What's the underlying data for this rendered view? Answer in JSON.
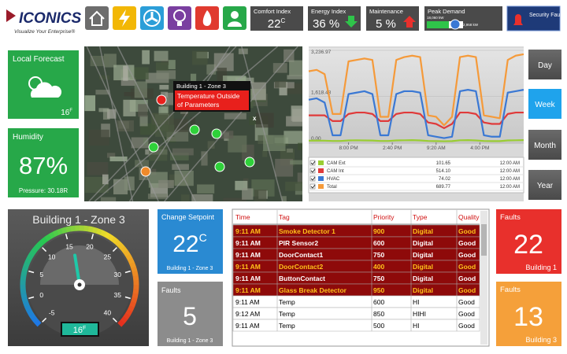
{
  "logo": {
    "brand": "ICONICS",
    "tagline": "Visualize Your Enterprise®"
  },
  "kpis": [
    {
      "label": "Comfort Index",
      "value": "22",
      "unit": "C"
    },
    {
      "label": "Energy Index",
      "value": "36 %"
    },
    {
      "label": "Maintenance",
      "value": "5 %"
    }
  ],
  "peak_demand": {
    "label": "Peak Demand",
    "max": "18,060 kW",
    "current": "2,958 kW"
  },
  "security": {
    "label": "Security Faults"
  },
  "forecast": {
    "title": "Local Forecast",
    "temp": "16",
    "unit": "F"
  },
  "humidity": {
    "title": "Humidity",
    "value": "87%",
    "pressure": "Pressure: 30.18R"
  },
  "map": {
    "tooltip_title": "Building 1 - Zone 3",
    "tooltip_text": [
      "Temperature Outside",
      "of Parameters"
    ],
    "close": "x"
  },
  "chart_data": {
    "type": "line",
    "xlim": [
      0,
      27
    ],
    "xticks": [
      {
        "value": 5,
        "label": "8:00 PM"
      },
      {
        "value": 10.5,
        "label": "2:40 PM"
      },
      {
        "value": 16,
        "label": "9:20 AM"
      },
      {
        "value": 21.5,
        "label": "4:00 PM"
      }
    ],
    "ylim": [
      0,
      3236.97
    ],
    "yticks": [
      {
        "value": 0,
        "label": "0.00"
      },
      {
        "value": 1618.48,
        "label": "1,618.48"
      },
      {
        "value": 3236.97,
        "label": "3,236.97"
      }
    ],
    "grid": true,
    "series": [
      {
        "name": "CAM Ext",
        "color": "#9acd32",
        "last_value": "101.65",
        "last_time": "12:00 AM",
        "values": [
          60,
          65,
          60,
          50,
          50,
          70,
          75,
          70,
          65,
          50,
          50,
          70,
          75,
          80,
          70,
          50,
          45,
          40,
          45,
          75,
          80,
          70,
          50,
          45,
          45,
          70,
          75,
          80
        ]
      },
      {
        "name": "CAM Int",
        "color": "#e03a3a",
        "last_value": "514.10",
        "last_time": "12:00 AM",
        "values": [
          950,
          950,
          950,
          750,
          750,
          1000,
          1050,
          1050,
          1000,
          750,
          750,
          1000,
          1050,
          1050,
          1000,
          700,
          650,
          500,
          650,
          1050,
          1050,
          1000,
          700,
          650,
          650,
          1000,
          1050,
          1050
        ]
      },
      {
        "name": "HVAC",
        "color": "#3a78d4",
        "last_value": "74.02",
        "last_time": "12:00 AM",
        "values": [
          1500,
          1550,
          1400,
          250,
          250,
          1700,
          1750,
          1800,
          1700,
          250,
          250,
          1700,
          1800,
          1800,
          1750,
          250,
          200,
          150,
          200,
          1800,
          1850,
          1800,
          250,
          200,
          200,
          1750,
          1800,
          1850
        ]
      },
      {
        "name": "Total",
        "color": "#f59a3a",
        "last_value": "689.77",
        "last_time": "12:00 AM",
        "values": [
          2500,
          2550,
          2400,
          1000,
          1000,
          2850,
          2900,
          2950,
          2900,
          900,
          900,
          2900,
          3000,
          3050,
          3000,
          950,
          900,
          600,
          900,
          3000,
          3050,
          3000,
          950,
          900,
          850,
          2900,
          3050,
          3100
        ]
      }
    ]
  },
  "range_buttons": [
    "Day",
    "Week",
    "Month",
    "Year"
  ],
  "range_selected": 1,
  "gauge": {
    "title": "Building 1 - Zone 3",
    "value": 16,
    "unit": "F",
    "ylim": [
      -5,
      40
    ],
    "yticks": [
      -5,
      0,
      5,
      10,
      15,
      20,
      25,
      30,
      35,
      40
    ]
  },
  "setpoint": {
    "title": "Change Setpoint",
    "value": "22",
    "unit": "C",
    "zone": "Building 1 - Zone 3"
  },
  "zone_faults": {
    "title": "Faults",
    "value": "5",
    "zone": "Building 1 - Zone 3"
  },
  "alarms": {
    "columns": [
      "Time",
      "Tag",
      "Priority",
      "Type",
      "Quality"
    ],
    "rows": [
      [
        "9:11 AM",
        "Smoke Detector 1",
        "900",
        "Digital",
        "Good"
      ],
      [
        "9:11 AM",
        "PIR Sensor2",
        "600",
        "Digital",
        "Good"
      ],
      [
        "9:11 AM",
        "DoorContact1",
        "750",
        "Digital",
        "Good"
      ],
      [
        "9:11 AM",
        "DoorContact2",
        "400",
        "Digital",
        "Good"
      ],
      [
        "9:11 AM",
        "ButtonContact",
        "750",
        "Digital",
        "Good"
      ],
      [
        "9:11 AM",
        "Glass Break Detector",
        "950",
        "Digital",
        "Good"
      ],
      [
        "9:11 AM",
        "Temp",
        "600",
        "HI",
        "Good"
      ],
      [
        "9:12 AM",
        "Temp",
        "850",
        "HIHI",
        "Good"
      ],
      [
        "9:11 AM",
        "Temp",
        "500",
        "HI",
        "Good"
      ]
    ],
    "row_styles": [
      {
        "bg": "#8e0a0a",
        "color": "#ffc21a",
        "bold": true
      },
      {
        "bg": "#8e0a0a",
        "color": "#ffffff",
        "bold": true
      },
      {
        "bg": "#8e0a0a",
        "color": "#ffffff",
        "bold": true
      },
      {
        "bg": "#8e0a0a",
        "color": "#ffc21a",
        "bold": true
      },
      {
        "bg": "#8e0a0a",
        "color": "#ffffff",
        "bold": true
      },
      {
        "bg": "#8e0a0a",
        "color": "#ffc21a",
        "bold": true
      },
      {
        "bg": "#ffffff",
        "color": "#000000",
        "bold": false
      },
      {
        "bg": "#ffffff",
        "color": "#000000",
        "bold": false
      },
      {
        "bg": "#ffffff",
        "color": "#000000",
        "bold": false
      }
    ]
  },
  "building_faults": [
    {
      "title": "Faults",
      "value": "22",
      "building": "Building 1",
      "color": "#e8302c"
    },
    {
      "title": "Faults",
      "value": "13",
      "building": "Building 3",
      "color": "#f5a03a"
    }
  ]
}
